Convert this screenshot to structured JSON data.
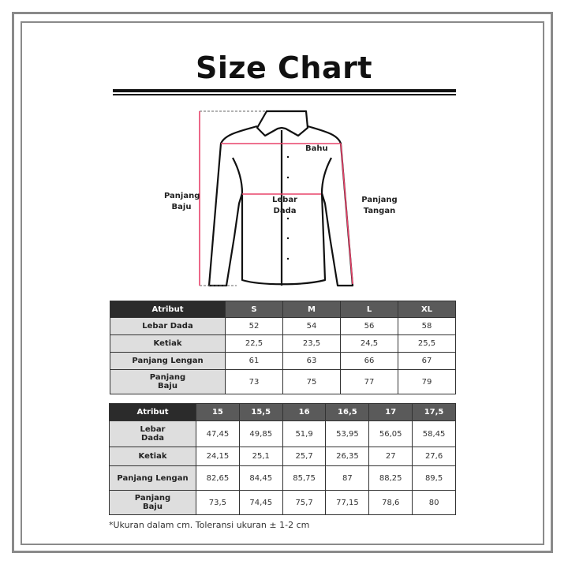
{
  "title": "Size Chart",
  "diagram_labels": {
    "bahu": "Bahu",
    "lebar_dada": "Lebar Dada",
    "panjang_baju": [
      "Panjang",
      "Baju"
    ],
    "panjang_tangan": [
      "Panjang",
      "Tangan"
    ]
  },
  "colors": {
    "measure_line": "#e8436a",
    "header_dark": "#2b2b2b",
    "header": "#5a5a5a",
    "attr_bg": "#dedede"
  },
  "table1": {
    "headers": [
      "Atribut",
      "S",
      "M",
      "L",
      "XL"
    ],
    "rows": [
      {
        "attr": "Lebar Dada",
        "values": [
          "52",
          "54",
          "56",
          "58"
        ]
      },
      {
        "attr": "Ketiak",
        "values": [
          "22,5",
          "23,5",
          "24,5",
          "25,5"
        ]
      },
      {
        "attr": "Panjang Lengan",
        "values": [
          "61",
          "63",
          "66",
          "67"
        ]
      },
      {
        "attr": "Panjang Baju",
        "values": [
          "73",
          "75",
          "77",
          "79"
        ]
      }
    ]
  },
  "table2": {
    "headers": [
      "Atribut",
      "15",
      "15,5",
      "16",
      "16,5",
      "17",
      "17,5"
    ],
    "rows": [
      {
        "attr": "Lebar Dada",
        "values": [
          "47,45",
          "49,85",
          "51,9",
          "53,95",
          "56,05",
          "58,45"
        ]
      },
      {
        "attr": "Ketiak",
        "values": [
          "24,15",
          "25,1",
          "25,7",
          "26,35",
          "27",
          "27,6"
        ]
      },
      {
        "attr": "Panjang Lengan",
        "values": [
          "82,65",
          "84,45",
          "85,75",
          "87",
          "88,25",
          "89,5"
        ]
      },
      {
        "attr": "Panjang Baju",
        "values": [
          "73,5",
          "74,45",
          "75,7",
          "77,15",
          "78,6",
          "80"
        ]
      }
    ]
  },
  "note": "*Ukuran dalam cm. Toleransi ukuran ± 1-2 cm"
}
